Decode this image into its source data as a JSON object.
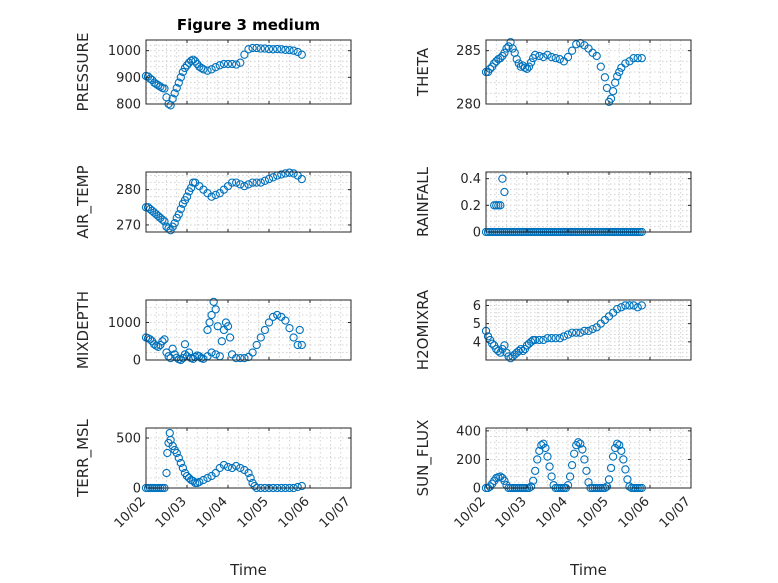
{
  "chart_data": [
    {
      "type": "scatter",
      "title": "Figure 3 medium",
      "ylabel": "PRESSURE",
      "ylim": [
        800,
        1040
      ],
      "yticks": [
        800,
        900,
        1000
      ],
      "ytick_labels": [
        "800",
        "900",
        "1000"
      ],
      "xlim": [
        0,
        5
      ],
      "xticks": [
        0,
        1,
        2,
        3,
        4,
        5
      ],
      "xtick_labels": [],
      "grid": true,
      "x": [
        0.0,
        0.05,
        0.1,
        0.15,
        0.2,
        0.25,
        0.3,
        0.35,
        0.4,
        0.45,
        0.5,
        0.55,
        0.6,
        0.65,
        0.7,
        0.75,
        0.8,
        0.85,
        0.9,
        0.95,
        1.0,
        1.05,
        1.1,
        1.15,
        1.2,
        1.25,
        1.3,
        1.35,
        1.4,
        1.5,
        1.6,
        1.7,
        1.8,
        1.9,
        2.0,
        2.1,
        2.2,
        2.3,
        2.4,
        2.5,
        2.6,
        2.7,
        2.8,
        2.9,
        3.0,
        3.1,
        3.2,
        3.3,
        3.4,
        3.5,
        3.6,
        3.7,
        3.8
      ],
      "y": [
        905,
        903,
        895,
        890,
        880,
        875,
        870,
        865,
        860,
        858,
        825,
        800,
        795,
        820,
        840,
        860,
        880,
        900,
        920,
        935,
        945,
        955,
        962,
        966,
        960,
        950,
        940,
        935,
        930,
        925,
        930,
        938,
        945,
        950,
        950,
        950,
        948,
        955,
        985,
        1005,
        1010,
        1010,
        1008,
        1008,
        1006,
        1005,
        1006,
        1005,
        1003,
        1002,
        1000,
        995,
        985
      ]
    },
    {
      "type": "scatter",
      "ylabel": "THETA",
      "ylim": [
        280,
        286
      ],
      "yticks": [
        280,
        285
      ],
      "ytick_labels": [
        "280",
        "285"
      ],
      "xlim": [
        0,
        5
      ],
      "xticks": [
        0,
        1,
        2,
        3,
        4,
        5
      ],
      "xtick_labels": [],
      "grid": true,
      "x": [
        0.0,
        0.05,
        0.1,
        0.15,
        0.2,
        0.25,
        0.3,
        0.35,
        0.4,
        0.45,
        0.5,
        0.55,
        0.6,
        0.65,
        0.7,
        0.75,
        0.8,
        0.85,
        0.9,
        0.95,
        1.0,
        1.05,
        1.1,
        1.15,
        1.2,
        1.3,
        1.4,
        1.5,
        1.6,
        1.7,
        1.8,
        1.9,
        2.0,
        2.1,
        2.2,
        2.3,
        2.4,
        2.5,
        2.6,
        2.7,
        2.8,
        2.9,
        2.95,
        3.0,
        3.05,
        3.1,
        3.15,
        3.2,
        3.25,
        3.3,
        3.4,
        3.5,
        3.6,
        3.7,
        3.8
      ],
      "y": [
        283.0,
        283.0,
        283.3,
        283.5,
        283.8,
        284.0,
        284.2,
        284.3,
        284.5,
        284.8,
        285.2,
        285.4,
        285.8,
        285.2,
        284.8,
        284.2,
        283.8,
        283.5,
        283.6,
        283.4,
        283.3,
        283.5,
        283.9,
        284.3,
        284.6,
        284.5,
        284.4,
        284.6,
        284.4,
        284.3,
        284.2,
        284.0,
        284.4,
        285.0,
        285.6,
        285.7,
        285.5,
        285.2,
        284.8,
        284.5,
        283.5,
        282.5,
        281.5,
        280.2,
        280.5,
        281.2,
        282.0,
        282.6,
        283.0,
        283.4,
        283.8,
        284.0,
        284.3,
        284.3,
        284.3
      ]
    },
    {
      "type": "scatter",
      "ylabel": "AIR_TEMP",
      "ylim": [
        268,
        285
      ],
      "yticks": [
        270,
        280
      ],
      "ytick_labels": [
        "270",
        "280"
      ],
      "xlim": [
        0,
        5
      ],
      "xticks": [
        0,
        1,
        2,
        3,
        4,
        5
      ],
      "xtick_labels": [],
      "grid": true,
      "x": [
        0.0,
        0.05,
        0.1,
        0.15,
        0.2,
        0.25,
        0.3,
        0.35,
        0.4,
        0.45,
        0.5,
        0.55,
        0.6,
        0.65,
        0.7,
        0.75,
        0.8,
        0.85,
        0.9,
        0.95,
        1.0,
        1.05,
        1.1,
        1.15,
        1.2,
        1.3,
        1.4,
        1.5,
        1.6,
        1.7,
        1.8,
        1.9,
        2.0,
        2.1,
        2.2,
        2.3,
        2.4,
        2.5,
        2.6,
        2.7,
        2.8,
        2.9,
        3.0,
        3.1,
        3.2,
        3.3,
        3.4,
        3.5,
        3.6,
        3.7,
        3.8
      ],
      "y": [
        275,
        275,
        274.5,
        274,
        273.5,
        273,
        272.5,
        272,
        271.5,
        271,
        269.5,
        269,
        268.5,
        269.5,
        270.5,
        272,
        273,
        274.5,
        276,
        277,
        278,
        279.5,
        280.5,
        282,
        282,
        281,
        280,
        279,
        278,
        278.5,
        279,
        280,
        281,
        282,
        282,
        281.5,
        281,
        281.5,
        282,
        282,
        282,
        282.5,
        283,
        283.5,
        284,
        284.3,
        284.6,
        284.8,
        284.6,
        284,
        283
      ]
    },
    {
      "type": "scatter",
      "ylabel": "RAINFALL",
      "ylim": [
        0,
        0.45
      ],
      "yticks": [
        0,
        0.2,
        0.4
      ],
      "ytick_labels": [
        "0",
        "0.2",
        "0.4"
      ],
      "xlim": [
        0,
        5
      ],
      "xticks": [
        0,
        1,
        2,
        3,
        4,
        5
      ],
      "xtick_labels": [],
      "grid": true,
      "x": [
        0.0,
        0.05,
        0.1,
        0.15,
        0.2,
        0.25,
        0.3,
        0.35,
        0.4,
        0.45,
        0.5,
        0.55,
        0.6,
        0.65,
        0.7,
        0.75,
        0.8,
        0.85,
        0.9,
        0.95,
        1.0,
        1.05,
        1.1,
        1.15,
        1.2,
        1.25,
        1.3,
        1.35,
        1.4,
        1.45,
        1.5,
        1.55,
        1.6,
        1.65,
        1.7,
        1.75,
        1.8,
        1.85,
        1.9,
        1.95,
        2.0,
        2.05,
        2.1,
        2.15,
        2.2,
        2.25,
        2.3,
        2.35,
        2.4,
        2.45,
        2.5,
        2.55,
        2.6,
        2.65,
        2.7,
        2.75,
        2.8,
        2.85,
        2.9,
        2.95,
        3.0,
        3.05,
        3.1,
        3.15,
        3.2,
        3.25,
        3.3,
        3.35,
        3.4,
        3.45,
        3.5,
        3.55,
        3.6,
        3.65,
        3.7,
        3.75,
        3.8,
        0.2,
        0.25,
        0.3,
        0.35,
        0.4,
        0.45
      ],
      "y": [
        0,
        0,
        0,
        0,
        0,
        0,
        0,
        0,
        0,
        0,
        0,
        0,
        0,
        0,
        0,
        0,
        0,
        0,
        0,
        0,
        0,
        0,
        0,
        0,
        0,
        0,
        0,
        0,
        0,
        0,
        0,
        0,
        0,
        0,
        0,
        0,
        0,
        0,
        0,
        0,
        0,
        0,
        0,
        0,
        0,
        0,
        0,
        0,
        0,
        0,
        0,
        0,
        0,
        0,
        0,
        0,
        0,
        0,
        0,
        0,
        0,
        0,
        0,
        0,
        0,
        0,
        0,
        0,
        0,
        0,
        0,
        0,
        0,
        0,
        0,
        0,
        0,
        0.2,
        0.2,
        0.2,
        0.2,
        0.4,
        0.3
      ]
    },
    {
      "type": "scatter",
      "ylabel": "MIXDEPTH",
      "ylim": [
        0,
        1600
      ],
      "yticks": [
        0,
        1000
      ],
      "ytick_labels": [
        "0",
        "1000"
      ],
      "xlim": [
        0,
        5
      ],
      "xticks": [
        0,
        1,
        2,
        3,
        4,
        5
      ],
      "xtick_labels": [],
      "grid": true,
      "x": [
        0.0,
        0.05,
        0.1,
        0.15,
        0.2,
        0.25,
        0.3,
        0.35,
        0.4,
        0.45,
        0.5,
        0.55,
        0.6,
        0.65,
        0.7,
        0.75,
        0.8,
        0.85,
        0.9,
        0.95,
        1.0,
        1.05,
        1.1,
        1.15,
        1.2,
        1.25,
        1.3,
        1.35,
        1.4,
        1.5,
        1.6,
        1.7,
        1.8,
        1.85,
        1.9,
        1.95,
        2.0,
        2.05,
        2.1,
        2.2,
        2.3,
        2.4,
        2.5,
        2.6,
        2.7,
        2.8,
        2.9,
        3.0,
        3.1,
        3.2,
        3.3,
        3.4,
        3.5,
        3.6,
        3.7,
        3.75,
        3.8,
        1.5,
        1.55,
        1.6,
        1.65,
        1.7,
        1.75,
        0.95
      ],
      "y": [
        600,
        580,
        550,
        500,
        420,
        380,
        350,
        400,
        500,
        550,
        200,
        100,
        50,
        300,
        150,
        60,
        20,
        0,
        50,
        150,
        100,
        200,
        50,
        30,
        80,
        120,
        100,
        50,
        30,
        100,
        200,
        150,
        100,
        500,
        800,
        1000,
        900,
        600,
        150,
        50,
        50,
        50,
        80,
        200,
        400,
        600,
        800,
        1000,
        1150,
        1200,
        1150,
        1050,
        850,
        600,
        400,
        800,
        400,
        800,
        1000,
        1200,
        1550,
        1350,
        900,
        420
      ],
      "note_order": "points listed in reading order"
    },
    {
      "type": "scatter",
      "ylabel": "H2OMIXRA",
      "ylim": [
        3,
        6.3
      ],
      "yticks": [
        4,
        5,
        6
      ],
      "ytick_labels": [
        "4",
        "5",
        "6"
      ],
      "xlim": [
        0,
        5
      ],
      "xticks": [
        0,
        1,
        2,
        3,
        4,
        5
      ],
      "xtick_labels": [],
      "grid": true,
      "x": [
        0.0,
        0.05,
        0.1,
        0.15,
        0.2,
        0.25,
        0.3,
        0.35,
        0.4,
        0.45,
        0.5,
        0.55,
        0.6,
        0.65,
        0.7,
        0.75,
        0.8,
        0.85,
        0.9,
        0.95,
        1.0,
        1.05,
        1.1,
        1.15,
        1.2,
        1.3,
        1.4,
        1.5,
        1.6,
        1.7,
        1.8,
        1.9,
        2.0,
        2.1,
        2.2,
        2.3,
        2.4,
        2.5,
        2.6,
        2.7,
        2.8,
        2.9,
        3.0,
        3.1,
        3.2,
        3.3,
        3.4,
        3.5,
        3.6,
        3.7,
        3.8
      ],
      "y": [
        4.6,
        4.3,
        4.1,
        3.9,
        3.8,
        3.6,
        3.5,
        3.4,
        3.6,
        3.8,
        3.4,
        3.2,
        3.1,
        3.2,
        3.3,
        3.4,
        3.5,
        3.6,
        3.5,
        3.6,
        3.8,
        3.9,
        4.0,
        4.1,
        4.1,
        4.1,
        4.1,
        4.2,
        4.2,
        4.2,
        4.2,
        4.3,
        4.4,
        4.5,
        4.5,
        4.5,
        4.6,
        4.6,
        4.7,
        4.8,
        5.0,
        5.2,
        5.4,
        5.6,
        5.8,
        5.9,
        6.0,
        6.0,
        6.0,
        5.9,
        6.0
      ]
    },
    {
      "type": "scatter",
      "ylabel": "TERR_MSL",
      "ylim": [
        0,
        600
      ],
      "yticks": [
        0,
        500
      ],
      "ytick_labels": [
        "0",
        "500"
      ],
      "xlim": [
        0,
        5
      ],
      "xticks": [
        0,
        1,
        2,
        3,
        4,
        5
      ],
      "xtick_labels": [
        "10/02",
        "10/03",
        "10/04",
        "10/05",
        "10/06",
        "10/07"
      ],
      "xlabel": "Time",
      "grid": true,
      "x": [
        0.0,
        0.05,
        0.1,
        0.15,
        0.2,
        0.25,
        0.3,
        0.35,
        0.4,
        0.45,
        0.5,
        0.52,
        0.55,
        0.58,
        0.6,
        0.65,
        0.7,
        0.75,
        0.8,
        0.85,
        0.9,
        0.95,
        1.0,
        1.05,
        1.1,
        1.15,
        1.2,
        1.25,
        1.3,
        1.4,
        1.5,
        1.6,
        1.7,
        1.8,
        1.9,
        2.0,
        2.1,
        2.2,
        2.3,
        2.4,
        2.5,
        2.55,
        2.6,
        2.65,
        2.7,
        2.8,
        2.9,
        3.0,
        3.1,
        3.2,
        3.3,
        3.4,
        3.5,
        3.6,
        3.7,
        3.8
      ],
      "y": [
        0,
        0,
        0,
        0,
        0,
        0,
        0,
        0,
        0,
        0,
        150,
        350,
        450,
        550,
        480,
        420,
        380,
        350,
        300,
        250,
        200,
        150,
        120,
        100,
        80,
        70,
        50,
        50,
        60,
        80,
        100,
        120,
        150,
        200,
        230,
        210,
        200,
        220,
        200,
        180,
        150,
        100,
        50,
        20,
        0,
        0,
        0,
        0,
        0,
        0,
        0,
        0,
        0,
        0,
        10,
        20
      ]
    },
    {
      "type": "scatter",
      "ylabel": "SUN_FLUX",
      "ylim": [
        0,
        420
      ],
      "yticks": [
        0,
        200,
        400
      ],
      "ytick_labels": [
        "0",
        "200",
        "400"
      ],
      "xlim": [
        0,
        5
      ],
      "xticks": [
        0,
        1,
        2,
        3,
        4,
        5
      ],
      "xtick_labels": [
        "10/02",
        "10/03",
        "10/04",
        "10/05",
        "10/06",
        "10/07"
      ],
      "xlabel": "Time",
      "grid": true,
      "x": [
        0.0,
        0.05,
        0.1,
        0.15,
        0.2,
        0.25,
        0.3,
        0.35,
        0.4,
        0.45,
        0.5,
        0.55,
        0.6,
        0.65,
        0.7,
        0.75,
        0.8,
        0.85,
        0.9,
        0.95,
        1.0,
        1.05,
        1.1,
        1.15,
        1.2,
        1.25,
        1.3,
        1.35,
        1.4,
        1.45,
        1.5,
        1.55,
        1.6,
        1.65,
        1.7,
        1.75,
        1.8,
        1.85,
        1.9,
        1.95,
        2.0,
        2.05,
        2.1,
        2.15,
        2.2,
        2.25,
        2.3,
        2.35,
        2.4,
        2.45,
        2.5,
        2.55,
        2.6,
        2.65,
        2.7,
        2.75,
        2.8,
        2.85,
        2.9,
        2.95,
        3.0,
        3.05,
        3.1,
        3.15,
        3.2,
        3.25,
        3.3,
        3.35,
        3.4,
        3.45,
        3.5,
        3.55,
        3.6,
        3.65,
        3.7,
        3.75,
        3.8
      ],
      "y": [
        0,
        0,
        10,
        30,
        50,
        70,
        75,
        80,
        70,
        50,
        20,
        0,
        0,
        0,
        0,
        0,
        0,
        0,
        0,
        0,
        0,
        0,
        10,
        50,
        120,
        200,
        260,
        300,
        310,
        280,
        220,
        150,
        80,
        20,
        0,
        0,
        0,
        0,
        0,
        0,
        20,
        80,
        160,
        240,
        300,
        320,
        310,
        270,
        200,
        120,
        40,
        0,
        0,
        0,
        0,
        0,
        0,
        0,
        0,
        10,
        60,
        140,
        220,
        280,
        310,
        300,
        260,
        200,
        130,
        60,
        10,
        0,
        0,
        0,
        0,
        0,
        0
      ]
    }
  ]
}
